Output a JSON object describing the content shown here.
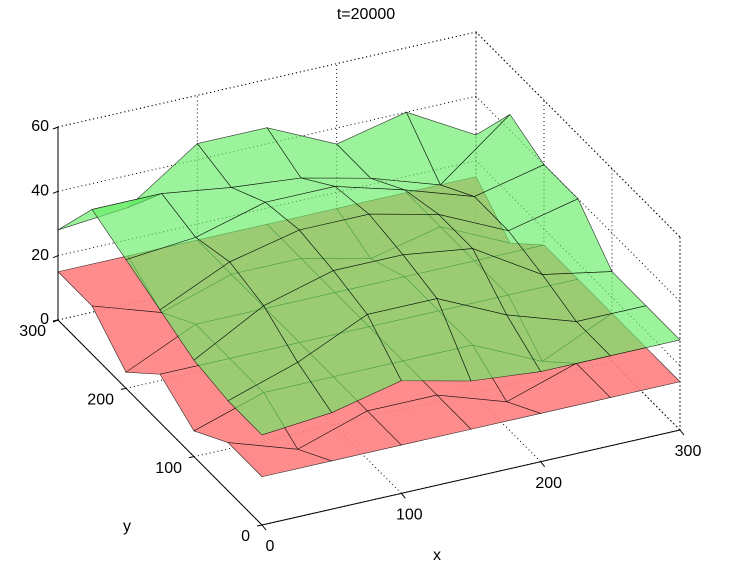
{
  "chart_data": {
    "type": "surface",
    "title": "t=20000",
    "xlabel": "x",
    "ylabel": "y",
    "x": [
      0,
      50,
      100,
      150,
      200,
      250,
      300
    ],
    "y": [
      0,
      50,
      100,
      150,
      200,
      250,
      300
    ],
    "xlim": [
      0,
      300
    ],
    "ylim": [
      0,
      300
    ],
    "zlim": [
      0,
      60
    ],
    "xticks": [
      0,
      100,
      200,
      300
    ],
    "yticks": [
      0,
      100,
      200,
      300
    ],
    "zticks": [
      0,
      20,
      40,
      60
    ],
    "grid": true,
    "surfaces": [
      {
        "color": "#ff7f7f",
        "z": [
          [
            15,
            15,
            15,
            15,
            15,
            15,
            15
          ],
          [
            15,
            8,
            15,
            15,
            8,
            15,
            15
          ],
          [
            8,
            15,
            15,
            15,
            15,
            5,
            15
          ],
          [
            15,
            15,
            15,
            15,
            15,
            15,
            15
          ],
          [
            5,
            15,
            15,
            15,
            15,
            15,
            15
          ],
          [
            15,
            8,
            15,
            15,
            10,
            15,
            5
          ],
          [
            15,
            15,
            15,
            15,
            15,
            15,
            15
          ]
        ]
      },
      {
        "color": "#66ee66",
        "z": [
          [
            28,
            30,
            35,
            30,
            28,
            28,
            28
          ],
          [
            28,
            35,
            45,
            45,
            35,
            28,
            28
          ],
          [
            30,
            42,
            48,
            48,
            45,
            32,
            28
          ],
          [
            35,
            45,
            50,
            50,
            45,
            35,
            40
          ],
          [
            40,
            42,
            48,
            48,
            42,
            35,
            40
          ],
          [
            45,
            45,
            42,
            40,
            35,
            28,
            45
          ],
          [
            28,
            30,
            45,
            45,
            35,
            40,
            28
          ]
        ]
      }
    ]
  }
}
